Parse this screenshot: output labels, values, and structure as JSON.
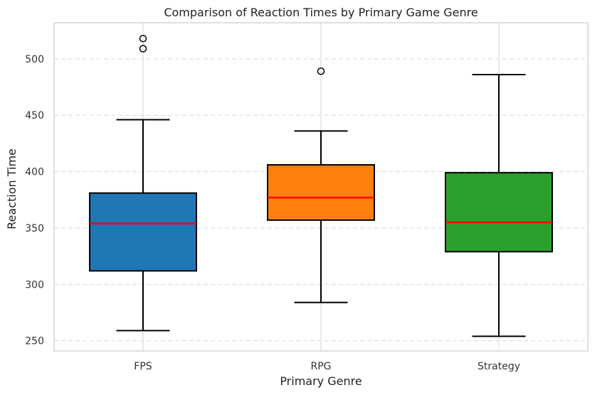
{
  "chart_data": {
    "type": "boxplot",
    "title": "Comparison of Reaction Times by Primary Game Genre",
    "xlabel": "Primary Genre",
    "ylabel": "Reaction Time",
    "ylim": [
      241,
      532
    ],
    "yticks": [
      250,
      300,
      350,
      400,
      450,
      500
    ],
    "grid": {
      "y": "dashed",
      "x": "solid-at-categories"
    },
    "colors": {
      "median": "#ff0000",
      "box_edge": "#000000",
      "grid": "#dddddd",
      "frame": "#cccccc"
    },
    "categories": [
      "FPS",
      "RPG",
      "Strategy"
    ],
    "series": [
      {
        "color": "#1f77b4",
        "whisker_low": 259,
        "q1": 312,
        "median": 354,
        "q3": 381,
        "whisker_high": 446,
        "outliers": [
          509,
          518
        ]
      },
      {
        "color": "#ff7f0e",
        "whisker_low": 284,
        "q1": 357,
        "median": 377,
        "q3": 406,
        "whisker_high": 436,
        "outliers": [
          489
        ]
      },
      {
        "color": "#2ca02c",
        "whisker_low": 254,
        "q1": 329,
        "median": 355,
        "q3": 399,
        "whisker_high": 486,
        "outliers": []
      }
    ]
  }
}
